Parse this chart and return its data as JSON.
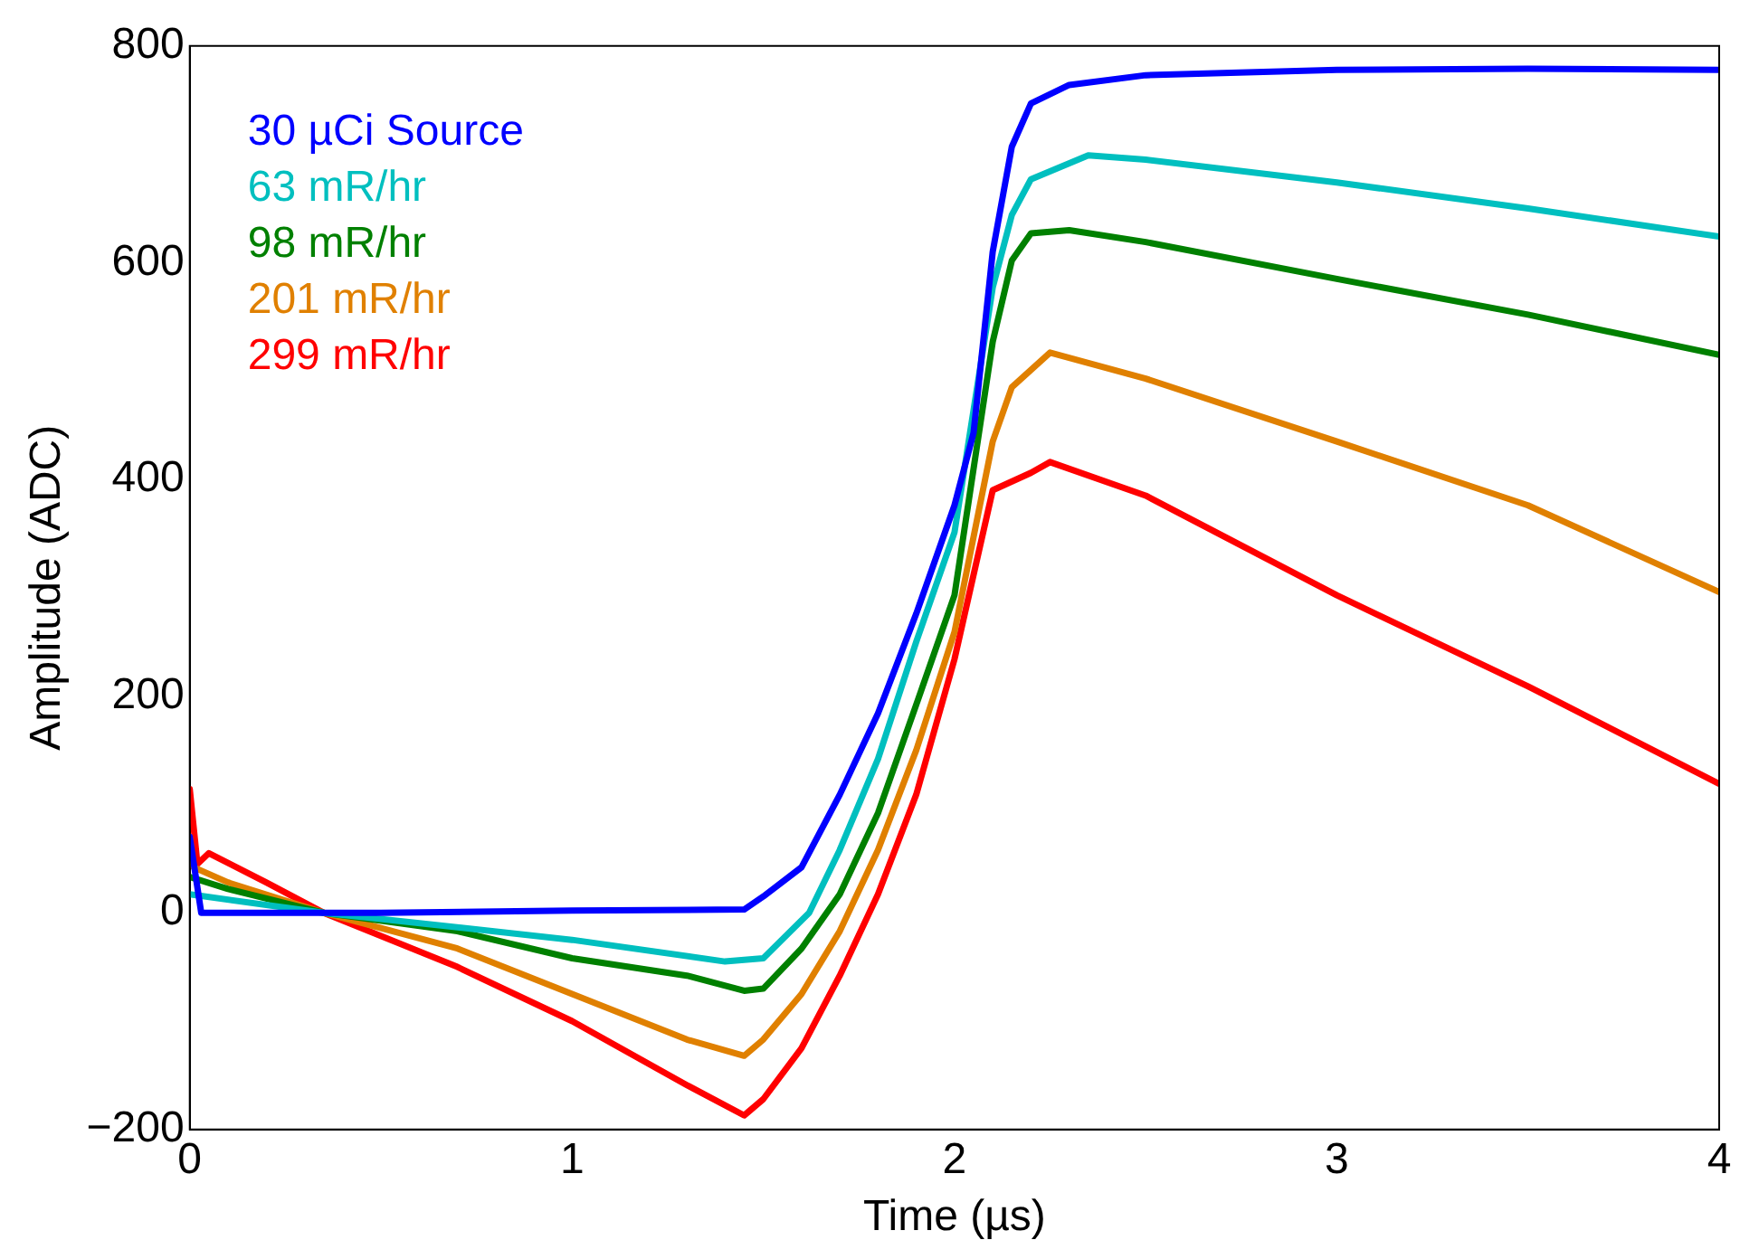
{
  "chart_data": {
    "type": "line",
    "xlabel": "Time (µs)",
    "ylabel": "Amplitude (ADC)",
    "xlim": [
      0,
      4
    ],
    "ylim": [
      -200,
      800
    ],
    "xticks": [
      0,
      1,
      2,
      3,
      4
    ],
    "yticks": [
      -200,
      0,
      200,
      400,
      600,
      800
    ],
    "grid": false,
    "legend": "top left",
    "marker": "none",
    "line_style": "solid",
    "series": [
      {
        "name": "30 µCi Source",
        "color": "#0000ff",
        "x": [
          0,
          0.03,
          0.5,
          1,
          1.45,
          1.5,
          1.6,
          1.7,
          1.8,
          1.9,
          2,
          2.05,
          2.1,
          2.15,
          2.2,
          2.3,
          2.5,
          3,
          3.5,
          4
        ],
        "values": [
          70,
          0,
          0,
          2,
          3,
          15,
          42,
          109,
          184,
          276,
          376,
          443,
          610,
          707,
          747,
          764,
          773,
          778,
          779,
          778
        ]
      },
      {
        "name": "63 mR/hr",
        "color": "#00bfbf",
        "x": [
          0,
          0.35,
          1,
          1.4,
          1.5,
          1.62,
          1.7,
          1.8,
          1.9,
          2,
          2.1,
          2.15,
          2.2,
          2.35,
          2.5,
          3,
          3.5,
          4
        ],
        "values": [
          17,
          0,
          -25,
          -45,
          -42,
          0,
          58,
          142,
          250,
          351,
          577,
          644,
          677,
          699,
          695,
          674,
          650,
          624
        ]
      },
      {
        "name": "98 mR/hr",
        "color": "#008000",
        "x": [
          0,
          0.1,
          0.35,
          0.7,
          1,
          1.3,
          1.45,
          1.5,
          1.6,
          1.7,
          1.8,
          1.9,
          2,
          2.1,
          2.15,
          2.2,
          2.3,
          2.5,
          3,
          3.5,
          4
        ],
        "values": [
          33,
          22,
          0,
          -17,
          -42,
          -58,
          -72,
          -70,
          -33,
          17,
          92,
          192,
          293,
          527,
          602,
          627,
          630,
          619,
          585,
          552,
          515
        ]
      },
      {
        "name": "201 mR/hr",
        "color": "#e08000",
        "x": [
          0,
          0.01,
          0.1,
          0.35,
          0.7,
          1,
          1.3,
          1.45,
          1.5,
          1.6,
          1.7,
          1.8,
          1.9,
          2,
          2.1,
          2.15,
          2.25,
          2.5,
          3,
          3.5,
          4
        ],
        "values": [
          70,
          42,
          28,
          0,
          -33,
          -75,
          -117,
          -132,
          -117,
          -75,
          -17,
          58,
          150,
          259,
          435,
          485,
          517,
          493,
          435,
          376,
          296
        ]
      },
      {
        "name": "299 mR/hr",
        "color": "#ff0000",
        "x": [
          0,
          0.02,
          0.05,
          0.2,
          0.35,
          0.7,
          1,
          1.3,
          1.45,
          1.5,
          1.6,
          1.7,
          1.8,
          1.9,
          2,
          2.1,
          2.2,
          2.25,
          2.5,
          3,
          3.5,
          4
        ],
        "values": [
          114,
          45,
          55,
          28,
          0,
          -50,
          -100,
          -159,
          -187,
          -172,
          -125,
          -58,
          17,
          109,
          234,
          390,
          406,
          416,
          385,
          293,
          209,
          119
        ]
      }
    ]
  }
}
